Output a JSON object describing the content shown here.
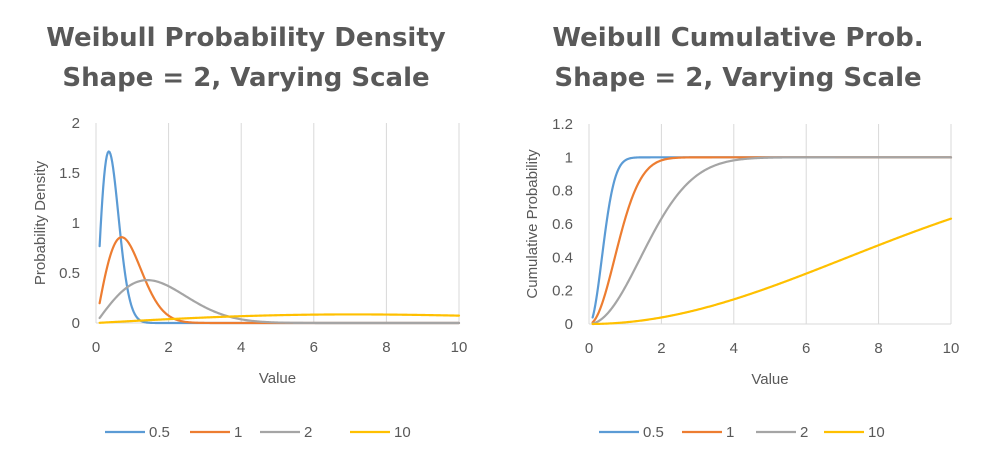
{
  "chart_data": [
    {
      "type": "line",
      "title_line1": "Weibull Probability Density",
      "title_line2": "Shape = 2, Varying Scale",
      "xlabel": "Value",
      "ylabel": "Probability Density",
      "xlim": [
        0,
        10
      ],
      "ylim": [
        0,
        2
      ],
      "xticks": [
        "0",
        "2",
        "4",
        "6",
        "8",
        "10"
      ],
      "yticks": [
        "0",
        "0.5",
        "1",
        "1.5",
        "2"
      ],
      "ytick_values": [
        0,
        0.5,
        1,
        1.5,
        2
      ],
      "grid": "vertical",
      "legend_position": "bottom",
      "shape": 2,
      "series": [
        {
          "name": "0.5",
          "scale": 0.5,
          "color": "#5B9BD5"
        },
        {
          "name": "1",
          "scale": 1,
          "color": "#ED7D31"
        },
        {
          "name": "2",
          "scale": 2,
          "color": "#A5A5A5"
        },
        {
          "name": "10",
          "scale": 10,
          "color": "#FFC000"
        }
      ],
      "x": [
        0.1,
        0.2,
        0.3,
        0.4,
        0.5,
        0.6,
        0.8,
        1.0,
        1.2,
        1.5,
        2.0,
        2.5,
        3.0,
        4.0,
        5.0,
        6.0,
        7.0,
        8.0,
        9.0,
        10.0
      ]
    },
    {
      "type": "line",
      "title_line1": "Weibull Cumulative Prob.",
      "title_line2": "Shape = 2, Varying Scale",
      "xlabel": "Value",
      "ylabel": "Cumulative Probability",
      "xlim": [
        0,
        10
      ],
      "ylim": [
        0,
        1.2
      ],
      "xticks": [
        "0",
        "2",
        "4",
        "6",
        "8",
        "10"
      ],
      "yticks": [
        "0",
        "0.2",
        "0.4",
        "0.6",
        "0.8",
        "1",
        "1.2"
      ],
      "ytick_values": [
        0,
        0.2,
        0.4,
        0.6,
        0.8,
        1,
        1.2
      ],
      "grid": "vertical",
      "legend_position": "bottom",
      "shape": 2,
      "series": [
        {
          "name": "0.5",
          "scale": 0.5,
          "color": "#5B9BD5"
        },
        {
          "name": "1",
          "scale": 1,
          "color": "#ED7D31"
        },
        {
          "name": "2",
          "scale": 2,
          "color": "#A5A5A5"
        },
        {
          "name": "10",
          "scale": 10,
          "color": "#FFC000"
        }
      ],
      "x": [
        0.1,
        0.2,
        0.3,
        0.4,
        0.5,
        0.6,
        0.8,
        1.0,
        1.2,
        1.5,
        2.0,
        2.5,
        3.0,
        4.0,
        5.0,
        6.0,
        7.0,
        8.0,
        9.0,
        10.0
      ]
    }
  ]
}
